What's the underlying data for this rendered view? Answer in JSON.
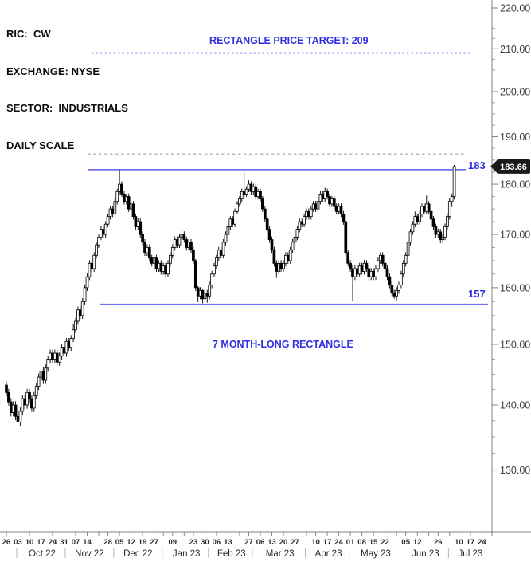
{
  "header": {
    "lines": [
      "RIC:  CW",
      "EXCHANGE: NYSE",
      "SECTOR:  INDUSTRIALS",
      "DAILY SCALE"
    ]
  },
  "annotations": {
    "target_label": "RECTANGLE PRICE TARGET: 209",
    "target_price": 209,
    "resistance_label": "183",
    "resistance_price": 183,
    "support_label": "157",
    "support_price": 157,
    "gray_dotted_price": 186.3,
    "rectangle_label": "7 MONTH-LONG RECTANGLE",
    "last_price_label": "183.66",
    "last_price": 183.66
  },
  "colors": {
    "annotation_text_blue": "#3030e0",
    "annotation_line_blue": "#7070f2",
    "target_dash_blue": "#5c5cf0",
    "gray_dotted": "#a3a3a3",
    "axis": "#808080",
    "axis_label": "#3f3f3f",
    "day_label": "#2b2b2b",
    "separator": "#b5b5b5",
    "candle": "#000000",
    "candle_up_fill": "#ffffff",
    "badge_bg": "#1a1a1a",
    "badge_text": "#ffffff"
  },
  "y_axis": {
    "labels": [
      "220.00",
      "210.00",
      "200.00",
      "190.00",
      "180.00",
      "170.00",
      "160.00",
      "150.00",
      "140.00",
      "130.00"
    ],
    "values": [
      220,
      210,
      200,
      190,
      180,
      170,
      160,
      150,
      140,
      130
    ]
  },
  "x_axis": {
    "week_ticks_i": [
      0,
      5,
      10,
      15,
      20,
      25,
      30,
      35,
      40,
      44,
      49,
      54,
      59,
      64,
      68,
      72,
      77,
      81,
      86,
      91,
      96,
      101,
      105,
      110,
      115,
      120,
      125,
      130,
      134,
      139,
      144,
      149,
      154,
      159,
      164,
      169,
      173,
      178,
      183,
      187,
      192,
      196,
      201,
      206
    ],
    "day_labels": [
      {
        "t": "26",
        "i": 0
      },
      {
        "t": "03",
        "i": 5
      },
      {
        "t": "10",
        "i": 10
      },
      {
        "t": "17",
        "i": 15
      },
      {
        "t": "24",
        "i": 20
      },
      {
        "t": "31",
        "i": 25
      },
      {
        "t": "07",
        "i": 30
      },
      {
        "t": "14",
        "i": 35
      },
      {
        "t": "28",
        "i": 44
      },
      {
        "t": "05",
        "i": 49
      },
      {
        "t": "12",
        "i": 54
      },
      {
        "t": "19",
        "i": 59
      },
      {
        "t": "27",
        "i": 64
      },
      {
        "t": "09",
        "i": 72
      },
      {
        "t": "23",
        "i": 81
      },
      {
        "t": "30",
        "i": 86
      },
      {
        "t": "06",
        "i": 91
      },
      {
        "t": "13",
        "i": 96
      },
      {
        "t": "27",
        "i": 105
      },
      {
        "t": "06",
        "i": 110
      },
      {
        "t": "13",
        "i": 115
      },
      {
        "t": "20",
        "i": 120
      },
      {
        "t": "27",
        "i": 125
      },
      {
        "t": "10",
        "i": 134
      },
      {
        "t": "17",
        "i": 139
      },
      {
        "t": "24",
        "i": 144
      },
      {
        "t": "01",
        "i": 149
      },
      {
        "t": "08",
        "i": 154
      },
      {
        "t": "15",
        "i": 159
      },
      {
        "t": "22",
        "i": 164
      },
      {
        "t": "05",
        "i": 173
      },
      {
        "t": "12",
        "i": 178
      },
      {
        "t": "26",
        "i": 187
      },
      {
        "t": "10",
        "i": 196
      },
      {
        "t": "17",
        "i": 201
      },
      {
        "t": "24",
        "i": 206
      }
    ],
    "month_labels": [
      {
        "t": "Oct 22",
        "i": 15.5
      },
      {
        "t": "Nov 22",
        "i": 36
      },
      {
        "t": "Dec 22",
        "i": 57
      },
      {
        "t": "Jan 23",
        "i": 78
      },
      {
        "t": "Feb 23",
        "i": 97.5
      },
      {
        "t": "Mar 23",
        "i": 118.5
      },
      {
        "t": "Apr 23",
        "i": 139.5
      },
      {
        "t": "May 23",
        "i": 160
      },
      {
        "t": "Jun 23",
        "i": 181.5
      },
      {
        "t": "Jul 23",
        "i": 201
      }
    ],
    "month_separators_i": [
      4.5,
      25.5,
      46.5,
      67.5,
      87.5,
      106.5,
      129.5,
      148.5,
      170.5,
      191.5
    ]
  },
  "chart_data": {
    "type": "candlestick",
    "scale": "log",
    "title": "CW daily candlestick chart with 7 month-long rectangle (support 157 / resistance 183), price target 209, last price 183.66",
    "x_unit": "trading-day index starting 2022-09-26, one candle per day through early Jul 2023",
    "ylim": [
      121,
      221
    ],
    "price_lines": {
      "resistance": 183,
      "support": 157,
      "target": 209,
      "minor_high_dotted": 186.3
    },
    "candles_format": [
      "open",
      "high",
      "low",
      "close"
    ],
    "candles": [
      [
        143.2,
        143.8,
        141.4,
        142.0
      ],
      [
        142.0,
        142.6,
        139.9,
        140.5
      ],
      [
        140.5,
        141.1,
        138.2,
        138.8
      ],
      [
        138.8,
        140.6,
        138.2,
        140.0
      ],
      [
        140.0,
        140.6,
        137.6,
        138.2
      ],
      [
        138.2,
        138.8,
        136.4,
        137.3
      ],
      [
        137.3,
        139.6,
        136.7,
        139.0
      ],
      [
        139.0,
        141.6,
        138.4,
        141.0
      ],
      [
        141.0,
        141.6,
        139.4,
        140.0
      ],
      [
        140.0,
        142.6,
        139.4,
        142.0
      ],
      [
        142.0,
        142.6,
        140.4,
        141.0
      ],
      [
        141.0,
        141.6,
        138.9,
        139.5
      ],
      [
        139.5,
        142.1,
        138.9,
        141.5
      ],
      [
        141.5,
        143.6,
        140.9,
        143.0
      ],
      [
        143.0,
        145.1,
        142.4,
        144.5
      ],
      [
        144.5,
        146.1,
        143.9,
        145.5
      ],
      [
        145.5,
        146.1,
        143.4,
        144.0
      ],
      [
        144.0,
        146.6,
        143.4,
        146.0
      ],
      [
        146.0,
        148.1,
        145.4,
        147.5
      ],
      [
        147.5,
        149.1,
        146.9,
        148.5
      ],
      [
        148.5,
        149.1,
        146.9,
        147.5
      ],
      [
        147.5,
        149.1,
        146.9,
        148.5
      ],
      [
        148.5,
        149.1,
        146.4,
        147.0
      ],
      [
        147.0,
        148.6,
        146.4,
        148.0
      ],
      [
        148.0,
        150.1,
        147.4,
        149.5
      ],
      [
        149.5,
        150.1,
        147.9,
        148.5
      ],
      [
        148.5,
        151.1,
        147.9,
        150.5
      ],
      [
        150.5,
        151.1,
        148.9,
        149.5
      ],
      [
        149.5,
        151.6,
        148.9,
        151.0
      ],
      [
        151.0,
        153.6,
        150.4,
        152.5
      ],
      [
        152.5,
        154.6,
        151.9,
        154.0
      ],
      [
        154.0,
        156.6,
        153.4,
        156.0
      ],
      [
        156.0,
        156.6,
        154.4,
        155.0
      ],
      [
        155.0,
        158.1,
        154.4,
        157.5
      ],
      [
        157.5,
        160.6,
        156.9,
        160.0
      ],
      [
        160.0,
        162.6,
        159.4,
        162.0
      ],
      [
        162.0,
        165.1,
        161.4,
        164.5
      ],
      [
        164.5,
        165.1,
        162.9,
        163.5
      ],
      [
        163.5,
        166.6,
        162.9,
        166.0
      ],
      [
        166.0,
        168.6,
        165.4,
        168.0
      ],
      [
        168.0,
        170.1,
        167.4,
        169.5
      ],
      [
        169.5,
        171.6,
        168.9,
        171.0
      ],
      [
        171.0,
        171.6,
        169.4,
        170.0
      ],
      [
        170.0,
        172.6,
        169.4,
        172.0
      ],
      [
        172.0,
        174.1,
        171.4,
        173.5
      ],
      [
        173.5,
        175.6,
        172.9,
        175.0
      ],
      [
        175.0,
        175.6,
        173.4,
        174.0
      ],
      [
        174.0,
        177.1,
        173.4,
        176.5
      ],
      [
        176.5,
        179.1,
        175.9,
        178.5
      ],
      [
        178.5,
        183.0,
        177.9,
        180.0
      ],
      [
        180.0,
        180.6,
        177.4,
        178.0
      ],
      [
        178.0,
        178.6,
        175.9,
        176.5
      ],
      [
        176.5,
        178.1,
        175.9,
        177.5
      ],
      [
        177.5,
        178.1,
        174.4,
        175.0
      ],
      [
        175.0,
        176.6,
        174.4,
        176.0
      ],
      [
        176.0,
        176.6,
        172.9,
        173.5
      ],
      [
        173.5,
        174.1,
        170.9,
        171.5
      ],
      [
        171.5,
        173.1,
        170.9,
        172.5
      ],
      [
        172.5,
        173.1,
        169.4,
        170.0
      ],
      [
        170.0,
        170.6,
        167.9,
        168.5
      ],
      [
        168.5,
        169.1,
        165.9,
        166.5
      ],
      [
        166.5,
        168.1,
        165.9,
        167.5
      ],
      [
        167.5,
        168.1,
        164.9,
        165.5
      ],
      [
        165.5,
        166.1,
        163.9,
        164.5
      ],
      [
        164.5,
        166.1,
        163.9,
        165.5
      ],
      [
        165.5,
        166.1,
        162.9,
        163.5
      ],
      [
        163.5,
        165.1,
        162.9,
        164.5
      ],
      [
        164.5,
        165.1,
        162.4,
        163.0
      ],
      [
        163.0,
        164.6,
        162.4,
        164.0
      ],
      [
        164.0,
        164.6,
        161.9,
        162.5
      ],
      [
        162.5,
        165.1,
        161.9,
        164.5
      ],
      [
        164.5,
        166.6,
        163.9,
        166.0
      ],
      [
        166.0,
        168.1,
        165.4,
        167.5
      ],
      [
        167.5,
        169.6,
        166.9,
        169.0
      ],
      [
        169.0,
        169.6,
        167.4,
        168.0
      ],
      [
        168.0,
        170.1,
        167.4,
        169.5
      ],
      [
        169.5,
        171.0,
        168.9,
        170.0
      ],
      [
        170.0,
        170.6,
        168.4,
        169.0
      ],
      [
        169.0,
        169.6,
        166.9,
        167.5
      ],
      [
        167.5,
        169.1,
        166.9,
        168.5
      ],
      [
        168.5,
        169.1,
        166.4,
        167.0
      ],
      [
        167.0,
        167.6,
        164.4,
        165.0
      ],
      [
        165.0,
        165.3,
        159.4,
        160.0
      ],
      [
        160.0,
        160.3,
        157.4,
        158.5
      ],
      [
        158.5,
        160.1,
        157.9,
        159.5
      ],
      [
        159.5,
        159.8,
        157.2,
        158.0
      ],
      [
        158.0,
        159.6,
        157.4,
        159.0
      ],
      [
        159.0,
        159.6,
        157.3,
        158.5
      ],
      [
        158.5,
        161.1,
        157.9,
        160.5
      ],
      [
        160.5,
        163.1,
        159.9,
        162.5
      ],
      [
        162.5,
        164.6,
        161.9,
        164.0
      ],
      [
        164.0,
        166.1,
        163.4,
        165.5
      ],
      [
        165.5,
        167.6,
        164.9,
        167.0
      ],
      [
        167.0,
        167.6,
        165.4,
        166.0
      ],
      [
        166.0,
        169.1,
        165.4,
        168.5
      ],
      [
        168.5,
        170.6,
        167.9,
        170.0
      ],
      [
        170.0,
        172.1,
        169.4,
        171.5
      ],
      [
        171.5,
        173.6,
        170.9,
        173.0
      ],
      [
        173.0,
        173.6,
        171.4,
        172.0
      ],
      [
        172.0,
        175.1,
        171.4,
        174.5
      ],
      [
        174.5,
        176.6,
        173.9,
        176.0
      ],
      [
        176.0,
        177.6,
        175.4,
        177.0
      ],
      [
        177.0,
        179.1,
        176.4,
        178.5
      ],
      [
        178.5,
        182.5,
        177.4,
        178.0
      ],
      [
        178.0,
        179.6,
        177.4,
        179.0
      ],
      [
        179.0,
        180.8,
        178.4,
        180.0
      ],
      [
        180.0,
        180.6,
        177.9,
        178.5
      ],
      [
        178.5,
        180.1,
        177.9,
        179.5
      ],
      [
        179.5,
        180.1,
        176.9,
        177.5
      ],
      [
        177.5,
        179.1,
        176.9,
        178.5
      ],
      [
        178.5,
        179.1,
        176.4,
        177.0
      ],
      [
        177.0,
        177.6,
        174.4,
        175.0
      ],
      [
        175.0,
        175.6,
        172.4,
        173.0
      ],
      [
        173.0,
        173.6,
        170.4,
        171.0
      ],
      [
        171.0,
        171.6,
        168.4,
        169.0
      ],
      [
        169.0,
        169.6,
        166.4,
        167.0
      ],
      [
        167.0,
        167.6,
        163.9,
        164.5
      ],
      [
        164.5,
        165.1,
        161.8,
        163.0
      ],
      [
        163.0,
        165.1,
        162.4,
        164.5
      ],
      [
        164.5,
        165.1,
        162.9,
        163.5
      ],
      [
        163.5,
        165.1,
        162.9,
        164.5
      ],
      [
        164.5,
        166.6,
        163.9,
        166.0
      ],
      [
        166.0,
        166.6,
        164.4,
        165.0
      ],
      [
        165.0,
        167.6,
        164.4,
        167.0
      ],
      [
        167.0,
        169.1,
        166.4,
        168.5
      ],
      [
        168.5,
        170.1,
        167.9,
        169.5
      ],
      [
        169.5,
        171.6,
        168.9,
        171.0
      ],
      [
        171.0,
        173.1,
        170.4,
        172.5
      ],
      [
        172.5,
        173.1,
        171.4,
        172.0
      ],
      [
        172.0,
        174.1,
        171.4,
        173.5
      ],
      [
        173.5,
        175.1,
        172.9,
        174.5
      ],
      [
        174.5,
        175.1,
        172.9,
        173.5
      ],
      [
        173.5,
        175.6,
        172.9,
        175.0
      ],
      [
        175.0,
        176.6,
        174.4,
        176.0
      ],
      [
        176.0,
        176.6,
        174.4,
        175.0
      ],
      [
        175.0,
        177.1,
        174.4,
        176.5
      ],
      [
        176.5,
        178.6,
        175.9,
        178.0
      ],
      [
        178.0,
        178.6,
        176.4,
        177.0
      ],
      [
        177.0,
        179.3,
        176.4,
        178.5
      ],
      [
        178.5,
        179.1,
        176.9,
        177.5
      ],
      [
        177.5,
        178.1,
        175.4,
        176.0
      ],
      [
        176.0,
        177.6,
        175.4,
        177.0
      ],
      [
        177.0,
        177.6,
        174.9,
        175.5
      ],
      [
        175.5,
        176.1,
        173.9,
        174.5
      ],
      [
        174.5,
        176.1,
        173.9,
        175.5
      ],
      [
        175.5,
        176.1,
        173.4,
        174.0
      ],
      [
        174.0,
        174.6,
        171.9,
        172.5
      ],
      [
        172.5,
        172.8,
        165.9,
        166.5
      ],
      [
        166.5,
        167.1,
        163.9,
        164.5
      ],
      [
        164.5,
        165.1,
        162.9,
        163.5
      ],
      [
        163.5,
        164.1,
        157.6,
        162.0
      ],
      [
        162.0,
        164.1,
        161.4,
        163.5
      ],
      [
        163.5,
        164.1,
        161.9,
        162.5
      ],
      [
        162.5,
        164.6,
        161.9,
        164.0
      ],
      [
        164.0,
        164.6,
        162.4,
        163.0
      ],
      [
        163.0,
        165.1,
        162.4,
        164.5
      ],
      [
        164.5,
        165.1,
        162.9,
        163.5
      ],
      [
        163.5,
        164.1,
        161.4,
        162.0
      ],
      [
        162.0,
        163.6,
        161.4,
        163.0
      ],
      [
        163.0,
        163.6,
        161.4,
        162.0
      ],
      [
        162.0,
        164.1,
        161.4,
        163.5
      ],
      [
        163.5,
        165.6,
        162.9,
        165.0
      ],
      [
        165.0,
        166.6,
        164.4,
        166.0
      ],
      [
        166.0,
        166.6,
        163.9,
        164.5
      ],
      [
        164.5,
        165.1,
        162.9,
        163.5
      ],
      [
        163.5,
        164.1,
        161.4,
        162.0
      ],
      [
        162.0,
        162.6,
        159.9,
        160.5
      ],
      [
        160.5,
        161.1,
        158.4,
        159.0
      ],
      [
        159.0,
        159.6,
        158.0,
        158.5
      ],
      [
        158.5,
        160.1,
        157.7,
        159.5
      ],
      [
        159.5,
        161.1,
        158.9,
        160.5
      ],
      [
        160.5,
        163.1,
        159.9,
        162.5
      ],
      [
        162.5,
        165.1,
        161.9,
        164.5
      ],
      [
        164.5,
        166.6,
        163.9,
        166.0
      ],
      [
        166.0,
        169.1,
        165.4,
        168.5
      ],
      [
        168.5,
        171.1,
        167.9,
        170.5
      ],
      [
        170.5,
        172.6,
        169.9,
        172.0
      ],
      [
        172.0,
        174.5,
        171.4,
        173.5
      ],
      [
        173.5,
        174.1,
        171.9,
        172.5
      ],
      [
        172.5,
        174.6,
        171.9,
        174.0
      ],
      [
        174.0,
        176.1,
        173.4,
        175.5
      ],
      [
        175.5,
        176.1,
        173.9,
        174.5
      ],
      [
        174.5,
        177.7,
        173.9,
        176.0
      ],
      [
        176.0,
        176.6,
        173.9,
        174.5
      ],
      [
        174.5,
        175.1,
        172.4,
        173.0
      ],
      [
        173.0,
        173.6,
        170.9,
        171.5
      ],
      [
        171.5,
        172.1,
        169.4,
        170.0
      ],
      [
        170.0,
        171.1,
        169.4,
        170.5
      ],
      [
        170.5,
        171.1,
        168.3,
        169.0
      ],
      [
        169.0,
        170.1,
        168.4,
        169.5
      ],
      [
        169.5,
        172.1,
        168.9,
        171.5
      ],
      [
        171.5,
        174.1,
        170.9,
        173.5
      ],
      [
        173.5,
        177.1,
        172.9,
        176.5
      ],
      [
        176.5,
        178.1,
        175.4,
        177.5
      ],
      [
        177.5,
        184.0,
        176.9,
        183.66
      ]
    ]
  }
}
